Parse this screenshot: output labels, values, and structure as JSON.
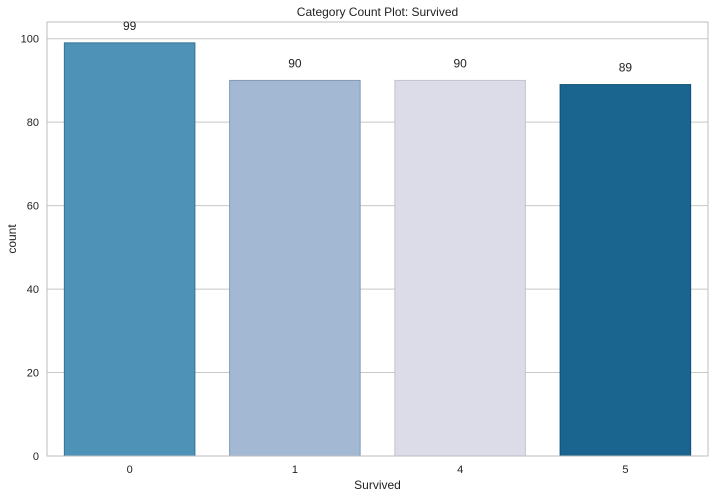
{
  "chart_data": {
    "type": "bar",
    "title": "Category Count Plot: Survived",
    "xlabel": "Survived",
    "ylabel": "count",
    "categories": [
      "0",
      "1",
      "4",
      "5"
    ],
    "values": [
      99,
      90,
      90,
      89
    ],
    "data_labels": [
      "99",
      "90",
      "90",
      "89"
    ],
    "ylim": [
      0,
      104
    ],
    "yticks": [
      0,
      20,
      40,
      60,
      80,
      100
    ],
    "grid": "horizontal",
    "colors": [
      "#4e92b8",
      "#a3b8d2",
      "#dcdce8",
      "#1a6590"
    ],
    "edge_colors": [
      "#2f7497",
      "#8399b5",
      "#c2c2d3",
      "#0c4f74"
    ]
  }
}
